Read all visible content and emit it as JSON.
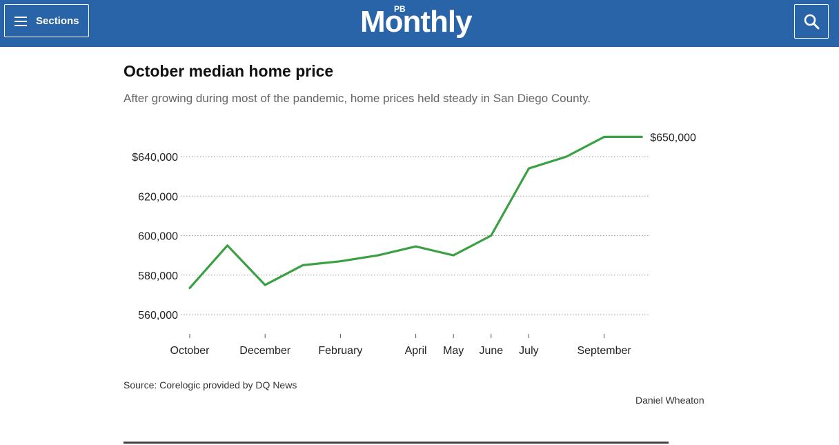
{
  "header": {
    "sections_label": "Sections",
    "logo_superscript": "PB",
    "logo_text": "Monthly",
    "brand_color": "#2a64a8"
  },
  "chart_title": "October median home price",
  "chart_subtitle": "After growing during most of the pandemic, home prices held steady in San Diego County.",
  "source": "Source: Corelogic provided by DQ News",
  "byline": "Daniel Wheaton",
  "chart_data": {
    "type": "line",
    "title": "October median home price",
    "subtitle": "After growing during most of the pandemic, home prices held steady in San Diego County.",
    "xlabel": "",
    "ylabel": "",
    "line_color": "#3ba043",
    "grid": true,
    "ylim": [
      550000,
      655000
    ],
    "y_ticks": [
      560000,
      580000,
      600000,
      620000,
      640000
    ],
    "y_tick_labels": [
      "560,000",
      "580,000",
      "600,000",
      "620,000",
      "$640,000"
    ],
    "x_tick_labels": [
      "October",
      "December",
      "February",
      "April",
      "May",
      "June",
      "July",
      "September"
    ],
    "x_tick_positions": [
      0,
      2,
      4,
      6,
      7,
      8,
      9,
      11
    ],
    "end_label": "$650,000",
    "series": [
      {
        "values": [
          573500,
          595000,
          575000,
          585000,
          587000,
          590000,
          594500,
          590000,
          600000,
          634000,
          640000,
          650000,
          650000
        ]
      }
    ]
  }
}
